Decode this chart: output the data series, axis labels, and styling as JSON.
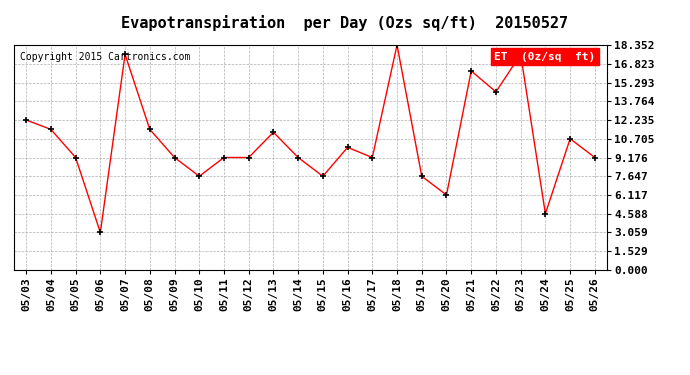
{
  "title": "Evapotranspiration  per Day (Ozs sq/ft)  20150527",
  "copyright_text": "Copyright 2015 Cartronics.com",
  "legend_label": "ET  (0z/sq  ft)",
  "x_labels": [
    "05/03",
    "05/04",
    "05/05",
    "05/06",
    "05/07",
    "05/08",
    "05/09",
    "05/10",
    "05/11",
    "05/12",
    "05/13",
    "05/14",
    "05/15",
    "05/16",
    "05/17",
    "05/18",
    "05/19",
    "05/20",
    "05/21",
    "05/22",
    "05/23",
    "05/24",
    "05/25",
    "05/26"
  ],
  "y_values": [
    12.235,
    11.47,
    9.176,
    3.059,
    17.588,
    11.47,
    9.176,
    7.647,
    9.176,
    9.176,
    11.235,
    9.176,
    7.647,
    10.0,
    9.176,
    18.352,
    7.647,
    6.117,
    16.235,
    14.529,
    17.588,
    4.588,
    10.705,
    9.176
  ],
  "line_color": "red",
  "marker_color": "black",
  "background_color": "#ffffff",
  "grid_color": "#b0b0b0",
  "y_ticks": [
    0.0,
    1.529,
    3.059,
    4.588,
    6.117,
    7.647,
    9.176,
    10.705,
    12.235,
    13.764,
    15.293,
    16.823,
    18.352
  ],
  "ylim": [
    0.0,
    18.352
  ],
  "title_fontsize": 11,
  "axis_fontsize": 8,
  "copyright_fontsize": 7,
  "legend_fontsize": 8
}
